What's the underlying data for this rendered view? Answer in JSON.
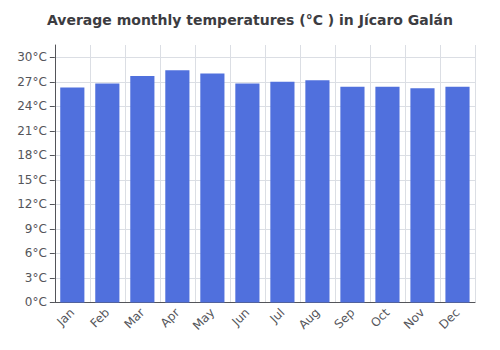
{
  "chart_data": {
    "type": "bar",
    "title": "Average monthly temperatures (°C ) in Jícaro Galán",
    "categories": [
      "Jan",
      "Feb",
      "Mar",
      "Apr",
      "May",
      "Jun",
      "Jul",
      "Aug",
      "Sep",
      "Oct",
      "Nov",
      "Dec"
    ],
    "values": [
      26.3,
      26.8,
      27.7,
      28.4,
      28.0,
      26.8,
      27.0,
      27.2,
      26.4,
      26.4,
      26.2,
      26.4
    ],
    "ylim": [
      0,
      31.5
    ],
    "yticks": [
      {
        "value": 0,
        "label": "0°C"
      },
      {
        "value": 3,
        "label": "3°C"
      },
      {
        "value": 6,
        "label": "6°C"
      },
      {
        "value": 9,
        "label": "9°C"
      },
      {
        "value": 12,
        "label": "12°C"
      },
      {
        "value": 15,
        "label": "15°C"
      },
      {
        "value": 18,
        "label": "18°C"
      },
      {
        "value": 21,
        "label": "21°C"
      },
      {
        "value": 24,
        "label": "24°C"
      },
      {
        "value": 27,
        "label": "27°C"
      },
      {
        "value": 30,
        "label": "30°C"
      }
    ],
    "grid": true
  }
}
